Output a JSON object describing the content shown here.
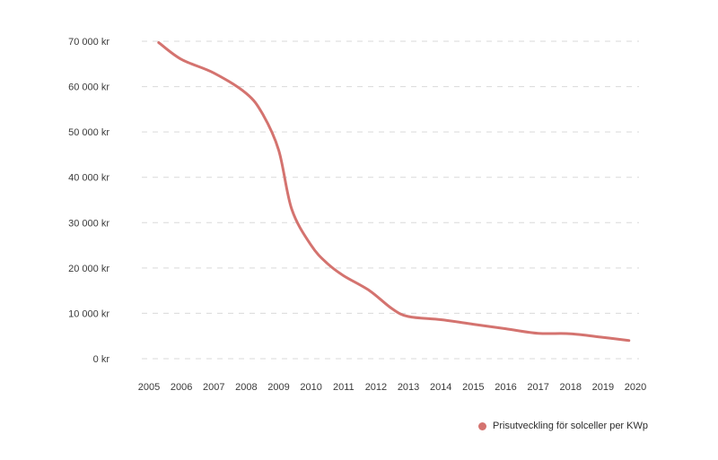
{
  "chart_data": {
    "type": "line",
    "title": "",
    "xlabel": "",
    "ylabel": "",
    "x_ticks": [
      "2005",
      "2006",
      "2007",
      "2008",
      "2009",
      "2010",
      "2011",
      "2012",
      "2013",
      "2014",
      "2015",
      "2016",
      "2017",
      "2018",
      "2019",
      "2020"
    ],
    "y_ticks": [
      {
        "value": 0,
        "label": "0 kr"
      },
      {
        "value": 10000,
        "label": "10 000 kr"
      },
      {
        "value": 20000,
        "label": "20 000 kr"
      },
      {
        "value": 30000,
        "label": "30 000 kr"
      },
      {
        "value": 40000,
        "label": "40 000 kr"
      },
      {
        "value": 50000,
        "label": "50 000 kr"
      },
      {
        "value": 60000,
        "label": "60 000 kr"
      },
      {
        "value": 70000,
        "label": "70 000 kr"
      }
    ],
    "xlim": [
      2005,
      2020
    ],
    "ylim": [
      0,
      70000
    ],
    "grid": true,
    "legend_position": "bottom-right",
    "series": [
      {
        "name": "Prisutveckling för solceller per KWp",
        "color": "#d4736f",
        "points": [
          {
            "x": 2005.3,
            "y": 69700
          },
          {
            "x": 2006.0,
            "y": 66000
          },
          {
            "x": 2007.0,
            "y": 63000
          },
          {
            "x": 2008.0,
            "y": 58500
          },
          {
            "x": 2008.5,
            "y": 54000
          },
          {
            "x": 2009.0,
            "y": 46000
          },
          {
            "x": 2009.4,
            "y": 33000
          },
          {
            "x": 2010.0,
            "y": 25000
          },
          {
            "x": 2010.5,
            "y": 21000
          },
          {
            "x": 2011.0,
            "y": 18300
          },
          {
            "x": 2011.8,
            "y": 15000
          },
          {
            "x": 2012.5,
            "y": 11000
          },
          {
            "x": 2013.0,
            "y": 9300
          },
          {
            "x": 2014.0,
            "y": 8600
          },
          {
            "x": 2015.0,
            "y": 7600
          },
          {
            "x": 2016.0,
            "y": 6600
          },
          {
            "x": 2017.0,
            "y": 5600
          },
          {
            "x": 2018.0,
            "y": 5500
          },
          {
            "x": 2019.0,
            "y": 4700
          },
          {
            "x": 2019.8,
            "y": 4000
          }
        ]
      }
    ]
  }
}
